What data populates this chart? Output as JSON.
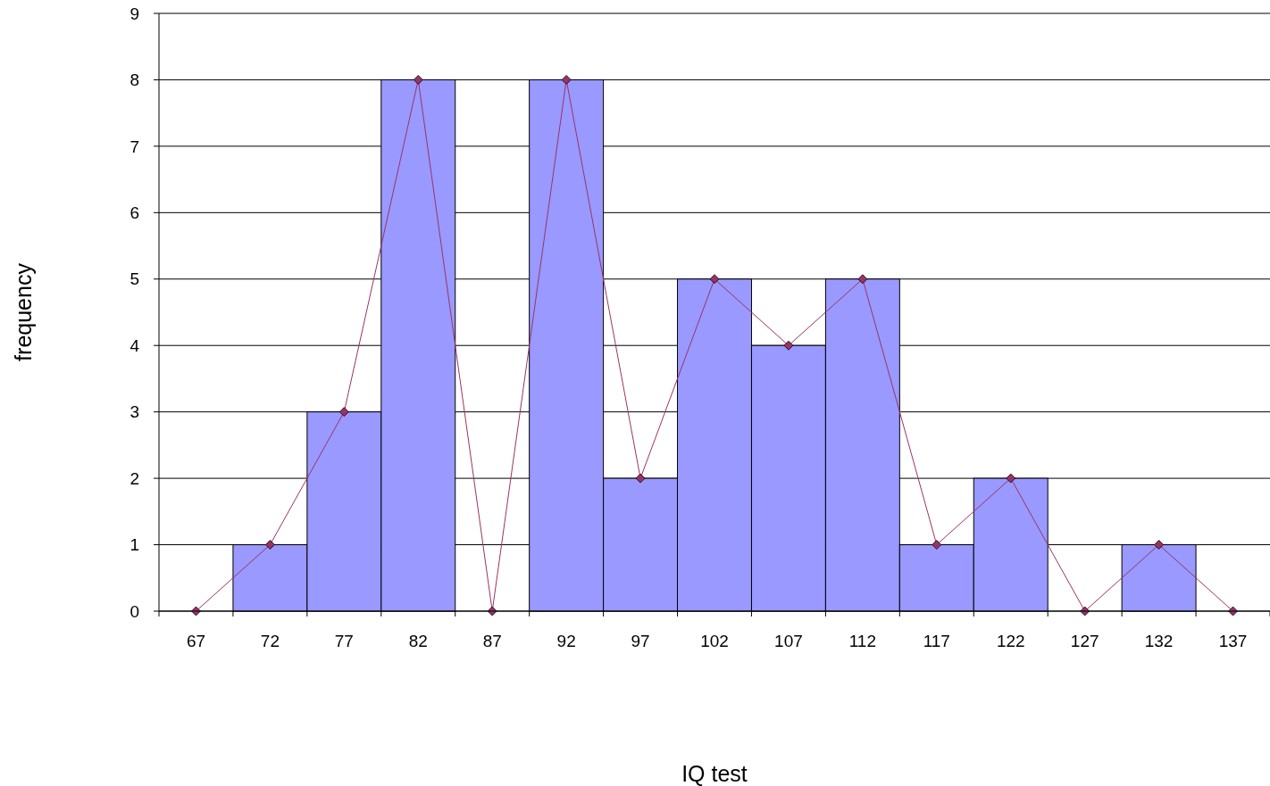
{
  "chart_data": {
    "type": "bar",
    "xlabel": "IQ test",
    "ylabel": "frequency",
    "categories": [
      "67",
      "72",
      "77",
      "82",
      "87",
      "92",
      "97",
      "102",
      "107",
      "112",
      "117",
      "122",
      "127",
      "132",
      "137"
    ],
    "series": [
      {
        "color": "#9999ff",
        "values": [
          0,
          1,
          3,
          8,
          0,
          8,
          2,
          5,
          4,
          5,
          1,
          2,
          0,
          1,
          0
        ]
      },
      {
        "type": "line",
        "color": "#993366",
        "values": [
          0,
          1,
          3,
          8,
          0,
          8,
          2,
          5,
          4,
          5,
          1,
          2,
          0,
          1,
          0
        ]
      }
    ],
    "ylim": [
      0,
      9
    ],
    "yticks": [
      0,
      1,
      2,
      3,
      4,
      5,
      6,
      7,
      8,
      9
    ],
    "grid": "y",
    "marker": "diamond",
    "line_style": "solid"
  }
}
